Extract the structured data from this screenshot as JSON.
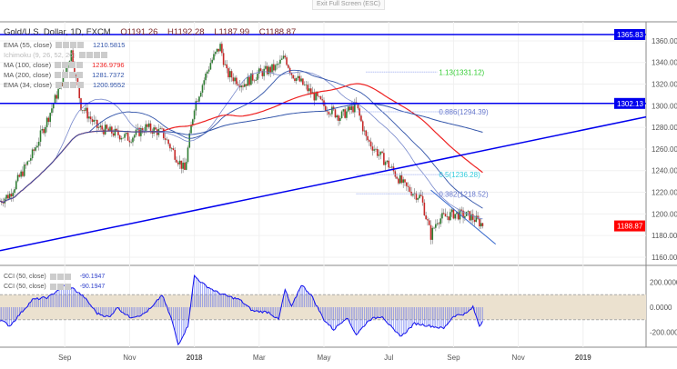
{
  "exit_fullscreen": "Exit Full Screen (ESC)",
  "symbol": {
    "title": "Gold/U.S. Dollar, 1D, FXCM",
    "open": "O1191.26",
    "high": "H1192.28",
    "low": "L1187.99",
    "close": "C1188.87"
  },
  "indicators": [
    {
      "label": "EMA (55, close)",
      "value": "1210.5815",
      "color": "#3355aa"
    },
    {
      "label": "Ichimoku (9, 26, 52, 26)",
      "value": "",
      "color": "#aaa"
    },
    {
      "label": "MA (100, close)",
      "value": "1236.9796",
      "color": "#ee2222"
    },
    {
      "label": "MA (200, close)",
      "value": "1281.7372",
      "color": "#3355aa"
    },
    {
      "label": "EMA (34, close)",
      "value": "1200.9552",
      "color": "#3355aa"
    }
  ],
  "cci_legend": [
    {
      "label": "CCI (50, close)",
      "value": "-90.1947"
    },
    {
      "label": "CCI (50, close)",
      "value": "-90.1947"
    }
  ],
  "price_labels": {
    "top_line": "1365.83",
    "mid_line": "1302.13",
    "last": "1188.87"
  },
  "fib_labels": [
    "1.13(1331.12)",
    "0.886(1294.39)",
    "0.5(1236.28)",
    "0.382(1218.52)"
  ],
  "colors": {
    "up": "#2e7d32",
    "down": "#c62828",
    "line": "#0000ee",
    "last": "#ff0000",
    "band": "#ebe1cf"
  },
  "chart_data": {
    "type": "candlestick",
    "title": "Gold/U.S. Dollar, 1D, FXCM",
    "y_ticks": [
      "1360.00",
      "1340.00",
      "1320.00",
      "1300.00",
      "1280.00",
      "1260.00",
      "1240.00",
      "1220.00",
      "1200.00",
      "1180.00",
      "1160.00"
    ],
    "ylim": [
      1155,
      1372
    ],
    "x_ticks": [
      "Sep",
      "Nov",
      "2018",
      "Mar",
      "May",
      "Jul",
      "Sep",
      "Nov",
      "2019"
    ],
    "x_tick_months": [
      2,
      4,
      6,
      8,
      10,
      12,
      14,
      16,
      18
    ],
    "close_path": [
      [
        0,
        1212
      ],
      [
        0.3,
        1218
      ],
      [
        1,
        1255
      ],
      [
        1.5,
        1290
      ],
      [
        2,
        1330
      ],
      [
        2.2,
        1350
      ],
      [
        2.5,
        1300
      ],
      [
        3,
        1280
      ],
      [
        3.5,
        1275
      ],
      [
        4,
        1270
      ],
      [
        4.5,
        1280
      ],
      [
        5,
        1275
      ],
      [
        5.5,
        1250
      ],
      [
        5.7,
        1240
      ],
      [
        6,
        1300
      ],
      [
        6.5,
        1340
      ],
      [
        6.8,
        1355
      ],
      [
        7,
        1330
      ],
      [
        7.5,
        1320
      ],
      [
        8,
        1330
      ],
      [
        8.5,
        1335
      ],
      [
        8.8,
        1345
      ],
      [
        9,
        1330
      ],
      [
        9.5,
        1315
      ],
      [
        10,
        1300
      ],
      [
        10.5,
        1290
      ],
      [
        11,
        1300
      ],
      [
        11.3,
        1270
      ],
      [
        11.7,
        1255
      ],
      [
        12,
        1245
      ],
      [
        12.5,
        1225
      ],
      [
        13,
        1215
      ],
      [
        13.3,
        1180
      ],
      [
        13.5,
        1195
      ],
      [
        14,
        1200
      ],
      [
        14.5,
        1198
      ],
      [
        14.95,
        1189
      ]
    ],
    "horizontal_lines": [
      1365.83,
      1302.13
    ],
    "trendline": [
      [
        0,
        1166
      ],
      [
        20,
        1290
      ]
    ],
    "fib_levels": [
      1331.12,
      1294.39,
      1236.28,
      1218.52
    ],
    "cci": {
      "ylim": [
        -330,
        280
      ],
      "ticks": [
        "200.0000",
        "0.0000",
        "-200.0000"
      ],
      "tick_values": [
        200,
        0,
        -200
      ],
      "band": [
        -100,
        100
      ],
      "path": [
        [
          0,
          -100
        ],
        [
          0.3,
          -150
        ],
        [
          0.6,
          -60
        ],
        [
          1,
          60
        ],
        [
          1.5,
          80
        ],
        [
          2,
          180
        ],
        [
          2.2,
          160
        ],
        [
          2.6,
          80
        ],
        [
          3,
          -50
        ],
        [
          3.4,
          -80
        ],
        [
          3.6,
          0
        ],
        [
          4,
          -80
        ],
        [
          4.4,
          -60
        ],
        [
          4.7,
          0
        ],
        [
          5,
          100
        ],
        [
          5.3,
          -100
        ],
        [
          5.5,
          -300
        ],
        [
          5.8,
          -150
        ],
        [
          6,
          250
        ],
        [
          6.3,
          180
        ],
        [
          6.7,
          120
        ],
        [
          7,
          90
        ],
        [
          7.4,
          60
        ],
        [
          7.8,
          -30
        ],
        [
          8.3,
          -40
        ],
        [
          8.6,
          -100
        ],
        [
          8.8,
          140
        ],
        [
          9,
          0
        ],
        [
          9.3,
          180
        ],
        [
          9.6,
          100
        ],
        [
          10,
          -100
        ],
        [
          10.3,
          -180
        ],
        [
          10.7,
          -80
        ],
        [
          11,
          -220
        ],
        [
          11.4,
          -100
        ],
        [
          11.8,
          -70
        ],
        [
          12.2,
          -200
        ],
        [
          12.4,
          -230
        ],
        [
          12.8,
          -130
        ],
        [
          13.3,
          -150
        ],
        [
          13.7,
          -170
        ],
        [
          14,
          -70
        ],
        [
          14.4,
          -50
        ],
        [
          14.6,
          0
        ],
        [
          14.8,
          -150
        ],
        [
          14.95,
          -90
        ]
      ]
    }
  }
}
